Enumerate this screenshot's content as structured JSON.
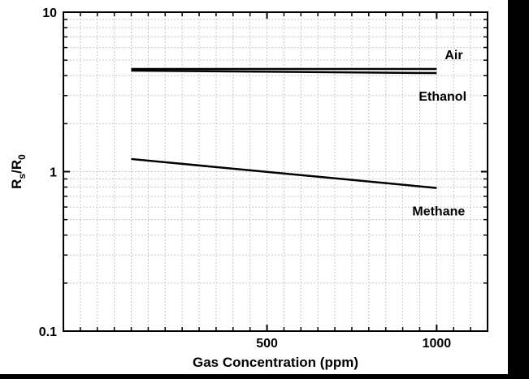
{
  "chart_data": {
    "type": "line",
    "title": "",
    "xlabel": "Gas Concentration (ppm)",
    "ylabel": {
      "main": "R",
      "sub1": "s",
      "slash": "/R",
      "sub2": "0"
    },
    "xlim": [
      -100,
      1150
    ],
    "ylim": [
      0.1,
      10
    ],
    "yscale": "log",
    "x_ticks": [
      500,
      1000
    ],
    "x_tick_labels": [
      "500",
      "1000"
    ],
    "y_ticks": [
      0.1,
      1,
      10
    ],
    "y_tick_labels": [
      "0.1",
      "1",
      "10"
    ],
    "grid": true,
    "series": [
      {
        "name": "Air",
        "x": [
          100,
          1000
        ],
        "y": [
          4.4,
          4.4
        ]
      },
      {
        "name": "Ethanol",
        "x": [
          100,
          1000
        ],
        "y": [
          4.3,
          4.15
        ]
      },
      {
        "name": "Methane",
        "x": [
          100,
          1000
        ],
        "y": [
          1.2,
          0.79
        ]
      }
    ],
    "colors": {
      "background": "#000000",
      "plot": "#ffffff",
      "line": "#000000",
      "grid": "#c8c8c8"
    }
  }
}
